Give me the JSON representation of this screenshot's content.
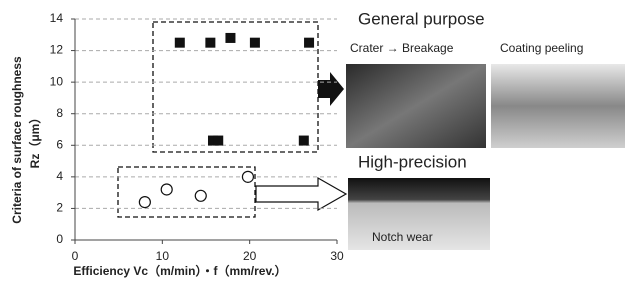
{
  "chart_data": {
    "type": "scatter",
    "x_label": "Efficiency Vc（m/min）・f（mm/rev.）",
    "y_label": "Criteria of surface roughness",
    "y_label_unit": "Rz（μm）",
    "xlim": [
      0,
      30
    ],
    "xticks": [
      0,
      10,
      20,
      30
    ],
    "ylim": [
      0,
      14
    ],
    "yticks": [
      0,
      2,
      4,
      6,
      8,
      10,
      12,
      14
    ],
    "grid": true,
    "series": [
      {
        "marker": "square",
        "color": "#111111",
        "x": [
          12,
          15.5,
          17.8,
          20.6,
          26.8,
          15.8,
          16.4,
          26.2
        ],
        "values": [
          12.5,
          12.5,
          12.8,
          12.5,
          12.5,
          6.3,
          6.3,
          6.3
        ]
      },
      {
        "marker": "circle",
        "color": "#111111",
        "x": [
          8,
          10.5,
          14.4,
          19.8
        ],
        "values": [
          2.4,
          3.2,
          2.8,
          4
        ]
      }
    ]
  },
  "figures": {
    "general_purpose": {
      "title": "General purpose",
      "captions": [
        "Crater → Breakage",
        "Coating peeling"
      ]
    },
    "high_precision": {
      "title": "High-precision",
      "captions": [
        "Notch wear"
      ]
    }
  }
}
